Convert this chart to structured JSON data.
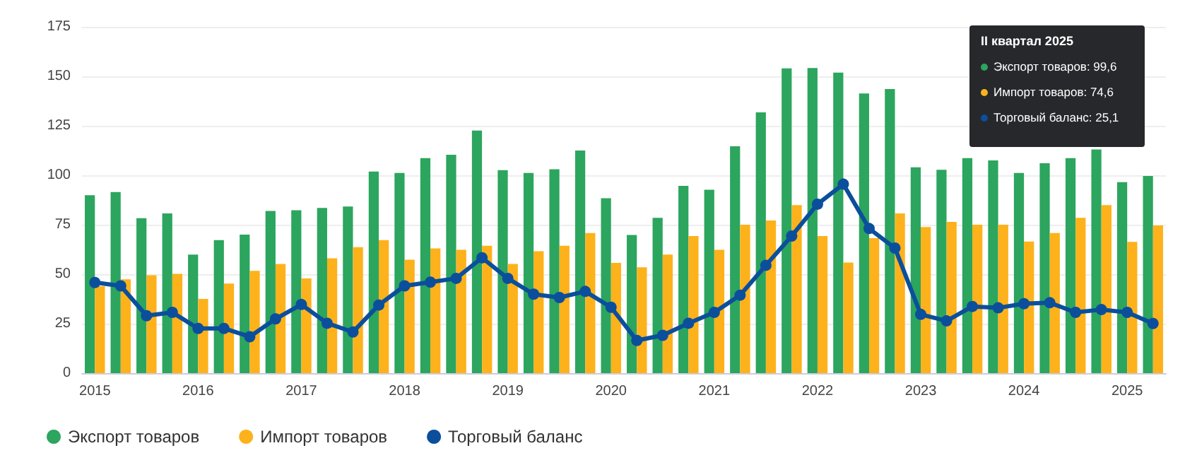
{
  "chart_data": {
    "type": "bar",
    "categories": [
      "2015",
      null,
      null,
      null,
      "2016",
      null,
      null,
      null,
      "2017",
      null,
      null,
      null,
      "2018",
      null,
      null,
      null,
      "2019",
      null,
      null,
      null,
      "2020",
      null,
      null,
      null,
      "2021",
      null,
      null,
      null,
      "2022",
      null,
      null,
      null,
      "2023",
      null,
      null,
      null,
      "2024",
      null,
      null,
      null,
      "2025",
      null
    ],
    "series": [
      {
        "name": "Экспорт товаров",
        "color": "#2ca55e",
        "values": [
          89.9,
          91.5,
          78.3,
          80.7,
          59.9,
          67.2,
          70,
          82,
          82.3,
          83.5,
          84.2,
          101.9,
          101.2,
          108.7,
          110.4,
          122.6,
          102.6,
          101.2,
          103,
          112.5,
          88.4,
          69.8,
          78.5,
          94.6,
          92.7,
          114.6,
          131.8,
          154,
          154.2,
          151.9,
          141.3,
          143.6,
          104,
          102.8,
          108.7,
          107.5,
          101.2,
          106.1,
          108.7,
          113,
          96.5,
          99.6
        ]
      },
      {
        "name": "Импорт товаров",
        "color": "#fdb21b",
        "values": [
          43.9,
          47.4,
          49.5,
          50.2,
          37.5,
          45.3,
          51.7,
          55.2,
          47.9,
          58,
          63.7,
          67.2,
          57.3,
          63,
          62.3,
          64.4,
          55.2,
          61.6,
          64.4,
          70.8,
          55.7,
          53.5,
          59.9,
          69.3,
          62.3,
          75,
          77.1,
          84.9,
          69.3,
          55.9,
          68.2,
          80.7,
          73.8,
          76.4,
          75,
          75,
          66.5,
          70.8,
          78.5,
          84.9,
          66.3,
          74.6
        ]
      },
      {
        "name": "Торговый баланс",
        "type": "line",
        "color": "#0b4f9c",
        "marker": "circle",
        "values": [
          45.8,
          44.1,
          29,
          30.7,
          22.6,
          22.6,
          18.4,
          27.4,
          34.7,
          25.2,
          20.8,
          34.4,
          44.1,
          46,
          47.9,
          58.3,
          47.9,
          39.9,
          38.2,
          41.3,
          33.3,
          16.5,
          19.1,
          25.2,
          30.7,
          39.4,
          54.5,
          69.3,
          85.4,
          95.5,
          73.1,
          63.2,
          29.7,
          26.4,
          33.7,
          33,
          35.1,
          35.6,
          30.7,
          32.1,
          30.7,
          25.1
        ]
      }
    ],
    "ylim": [
      0,
      175
    ],
    "yticks": [
      0,
      25,
      50,
      75,
      100,
      125,
      150,
      175
    ],
    "grid": "y",
    "legend": "bottom left",
    "annotations": [
      "II квартал 2025",
      "Экспорт товаров: 99,6",
      "Импорт товаров: 74,6",
      "Торговый баланс: 25,1"
    ]
  }
}
